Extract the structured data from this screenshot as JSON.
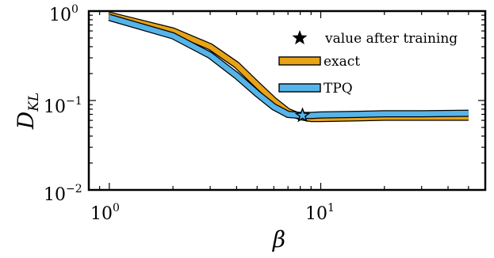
{
  "chart_data": {
    "type": "line",
    "x_scale": "log",
    "y_scale": "log",
    "xlim": [
      0.8,
      60
    ],
    "ylim": [
      0.01,
      1
    ],
    "x_ticks": [
      {
        "base": "10",
        "exp": "0",
        "value": 1
      },
      {
        "base": "10",
        "exp": "1",
        "value": 10
      }
    ],
    "y_ticks": [
      {
        "base": "10",
        "exp": "0",
        "value": 1
      },
      {
        "base": "10",
        "exp": "−1",
        "value": 0.1
      },
      {
        "base": "10",
        "exp": "−2",
        "value": 0.01
      }
    ],
    "xlabel": "β",
    "ylabel": {
      "main": "D",
      "sub": "KL"
    },
    "legend_position": "top-right",
    "series": [
      {
        "name": "exact",
        "color": "#e8a317",
        "x": [
          1,
          2,
          3,
          4,
          5,
          6,
          7,
          8,
          9,
          10,
          15,
          20,
          30,
          50
        ],
        "y": [
          0.9,
          0.6,
          0.4,
          0.25,
          0.15,
          0.1,
          0.075,
          0.066,
          0.063,
          0.063,
          0.064,
          0.065,
          0.065,
          0.065
        ]
      },
      {
        "name": "TPQ",
        "color": "#56b4e9",
        "x": [
          1,
          2,
          3,
          4,
          5,
          6,
          7,
          8,
          9,
          10,
          15,
          20,
          30,
          50
        ],
        "y": [
          0.85,
          0.53,
          0.32,
          0.19,
          0.12,
          0.085,
          0.07,
          0.068,
          0.068,
          0.069,
          0.07,
          0.071,
          0.071,
          0.072
        ]
      }
    ],
    "marker": {
      "label": "value after training",
      "x": 8.2,
      "y": 0.068,
      "symbol": "star",
      "fill": "#56b4e9",
      "legend_fill": "#000000"
    }
  }
}
